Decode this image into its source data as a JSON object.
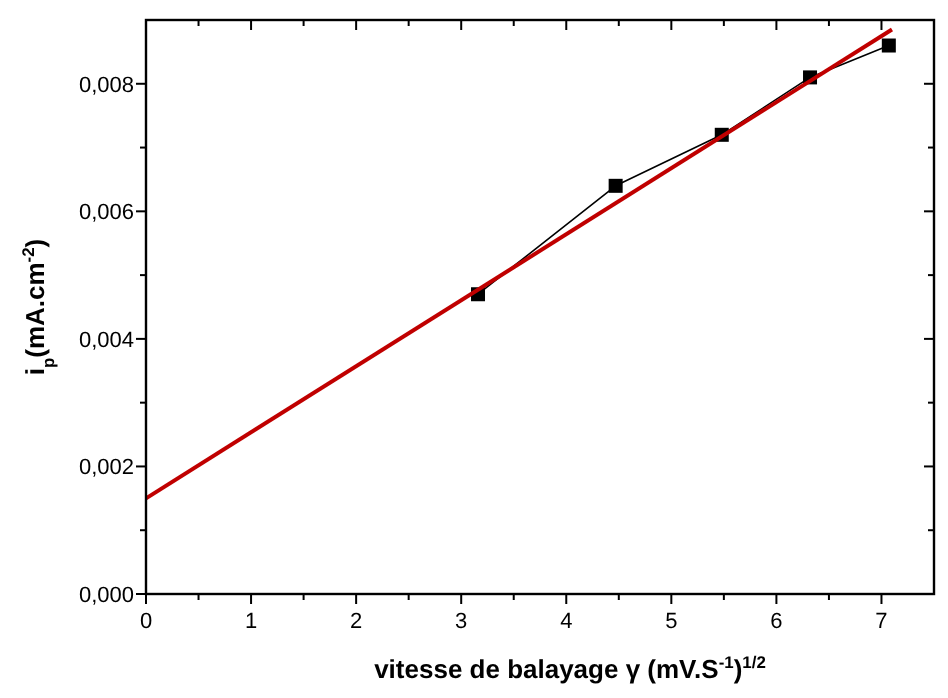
{
  "chart_data": {
    "type": "line",
    "xlabel": "vitesse de balayage γ (mV.S$^{-1}$)$^{1/2}$",
    "ylabel": "i$_{p}$(mA.cm$^{-2}$)",
    "xlim": [
      0,
      7.5
    ],
    "ylim": [
      0,
      0.009
    ],
    "xticks": [
      0,
      {
        "value": 0.5,
        "label": null
      },
      1,
      {
        "value": 1.5,
        "label": null
      },
      2,
      {
        "value": 2.5,
        "label": null
      },
      3,
      {
        "value": 3.5,
        "label": null
      },
      4,
      {
        "value": 4.5,
        "label": null
      },
      5,
      {
        "value": 5.5,
        "label": null
      },
      6,
      {
        "value": 6.5,
        "label": null
      },
      7
    ],
    "yticks": [
      {
        "value": 0,
        "label": "0,000"
      },
      {
        "value": 0.001,
        "label": null
      },
      {
        "value": 0.002,
        "label": "0,002"
      },
      {
        "value": 0.003,
        "label": null
      },
      {
        "value": 0.004,
        "label": "0,004"
      },
      {
        "value": 0.005,
        "label": null
      },
      {
        "value": 0.006,
        "label": "0,006"
      },
      {
        "value": 0.007,
        "label": null
      },
      {
        "value": 0.008,
        "label": "0,008"
      }
    ],
    "grid": false,
    "series": [
      {
        "color": "#000000",
        "marker": "square",
        "x": [
          3.16,
          4.47,
          5.48,
          6.32,
          7.07
        ],
        "values": [
          0.0047,
          0.0064,
          0.0072,
          0.0081,
          0.0086
        ]
      },
      {
        "color": "#c00000",
        "marker": "none",
        "x": [
          0,
          7.1
        ],
        "values": [
          0.0015,
          0.00885
        ]
      }
    ]
  }
}
